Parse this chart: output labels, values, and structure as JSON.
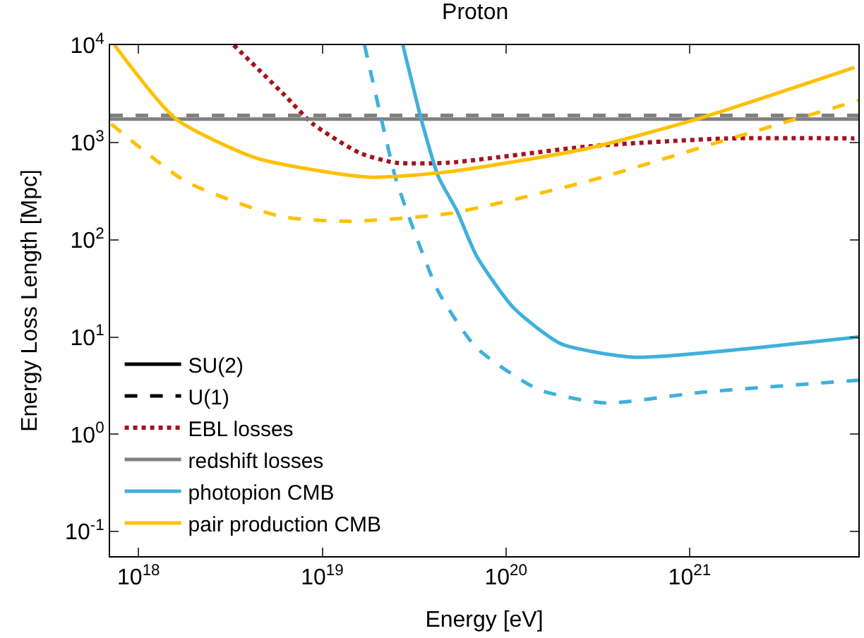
{
  "chart_data": {
    "type": "line",
    "title": "Proton",
    "xlabel": "Energy [eV]",
    "ylabel": "Energy Loss Length [Mpc]",
    "log": "xy",
    "legend": "bottom left",
    "xlim": [
      7e+17,
      8.3e+21
    ],
    "ylim": [
      0.056,
      10000
    ],
    "xticks": [
      {
        "value": 1e+18,
        "label": "10$^{18}$"
      },
      {
        "value": 1e+19,
        "label": "10$^{19}$"
      },
      {
        "value": 1e+20,
        "label": "10$^{20}$"
      },
      {
        "value": 1e+21,
        "label": "10$^{21}$"
      }
    ],
    "yticks": [
      {
        "value": 0.1,
        "label": "10$^{-1}$"
      },
      {
        "value": 1,
        "label": "10$^{0}$"
      },
      {
        "value": 10,
        "label": "10$^{1}$"
      },
      {
        "value": 100,
        "label": "10$^{2}$"
      },
      {
        "value": 1000,
        "label": "10$^{3}$"
      },
      {
        "value": 10000,
        "label": "10$^{4}$"
      }
    ],
    "series": [
      {
        "name": "SU(2)",
        "color": "#000000",
        "line_style": "solid",
        "values": [
          null
        ]
      },
      {
        "name": "U(1)",
        "color": "#000000",
        "line_style": "dashed",
        "values": [
          null
        ]
      },
      {
        "name": "EBL losses",
        "color": "#a3141e",
        "line_style": "dotted",
        "x": [
          3.3e+18,
          6.2e+18,
          8.9e+18,
          1.6e+19,
          2.5e+19,
          4.9e+19,
          2.8e+20,
          1.6e+21,
          7.9e+21
        ],
        "values": [
          10000,
          3100,
          1550,
          780,
          620,
          620,
          910,
          1100,
          1100
        ]
      },
      {
        "name": "redshift losses",
        "color": "#808080",
        "line_style": "solid",
        "x": [
          7e+17,
          8.3e+21
        ],
        "values": [
          1740,
          1740
        ]
      },
      {
        "color": "#808080",
        "line_style": "dashed",
        "x": [
          7e+17,
          8.3e+21
        ],
        "values": [
          1900,
          1900
        ]
      },
      {
        "name": "photopion CMB",
        "color": "#3fb0dc",
        "line_style": "solid",
        "x": [
          2.75e+19,
          3.5e+19,
          4.3e+19,
          5.4e+19,
          6.9e+19,
          1.1e+20,
          2e+20,
          5e+20,
          1.55e+21,
          8.3e+21
        ],
        "values": [
          10000,
          1600,
          440,
          200,
          69,
          20,
          8.5,
          6.2,
          7.2,
          10
        ]
      },
      {
        "color": "#3fb0dc",
        "line_style": "dashed",
        "x": [
          1.7e+19,
          2.1e+19,
          2.5e+19,
          3e+19,
          4.3e+19,
          6.9e+19,
          1.5e+20,
          3.5e+20,
          1.15e+21,
          8.3e+21
        ],
        "values": [
          10000,
          1740,
          440,
          162,
          29,
          7.8,
          2.9,
          2.1,
          2.7,
          3.6
        ]
      },
      {
        "name": "pair production CMB",
        "color": "#ffc000",
        "line_style": "solid",
        "x": [
          7.4e+17,
          1.6e+18,
          4.4e+18,
          1.8e+19,
          4.9e+19,
          2.8e+20,
          1.1e+21,
          7.9e+21
        ],
        "values": [
          10000,
          1740,
          690,
          440,
          500,
          870,
          1740,
          5900
        ]
      },
      {
        "color": "#ffc000",
        "line_style": "dashed",
        "x": [
          7.1e+17,
          1.8e+18,
          5.9e+18,
          1.4e+19,
          4.9e+19,
          2.8e+20,
          1.6e+21,
          8.3e+21
        ],
        "values": [
          1550,
          400,
          174,
          155,
          186,
          400,
          1070,
          2700
        ]
      }
    ]
  }
}
